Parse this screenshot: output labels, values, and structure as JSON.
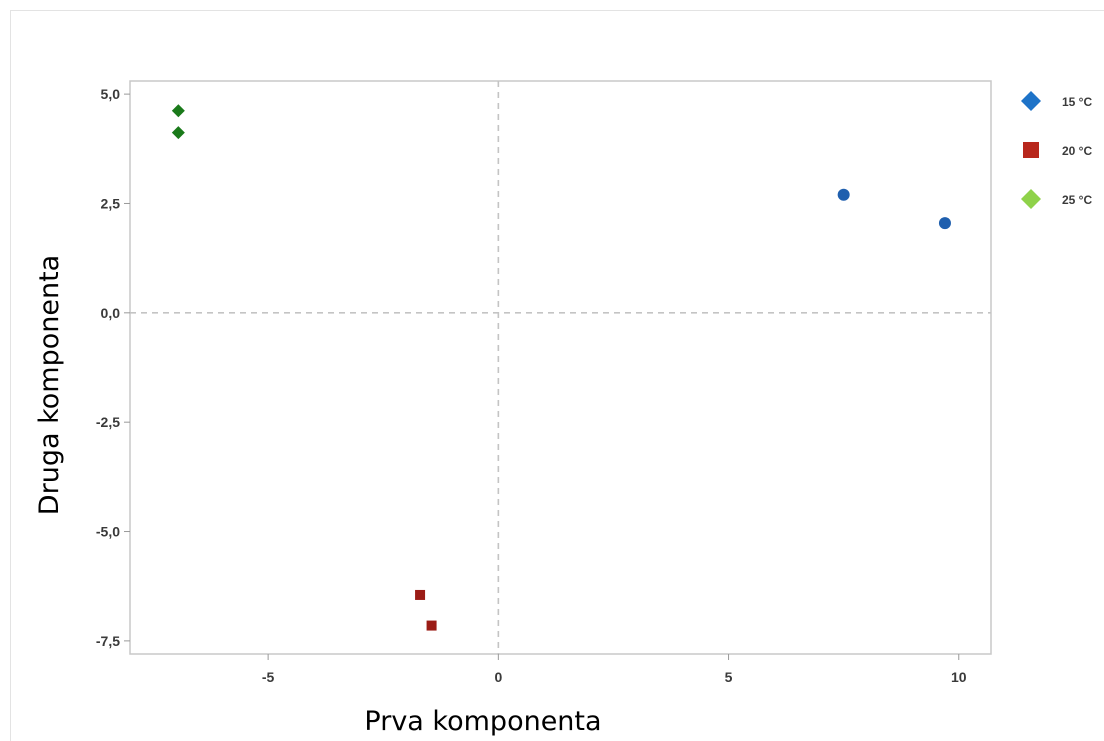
{
  "chart_data": {
    "type": "scatter",
    "title": "",
    "xlabel": "Prva komponenta",
    "ylabel": "Druga komponenta",
    "xlim": [
      -8.0,
      10.7
    ],
    "ylim": [
      -7.8,
      5.3
    ],
    "xticks": [
      -5,
      0,
      5,
      10
    ],
    "xtick_labels": [
      "-5",
      "0",
      "5",
      "10"
    ],
    "yticks": [
      5.0,
      2.5,
      0.0,
      -2.5,
      -5.0,
      -7.5
    ],
    "ytick_labels": [
      "5,0",
      "2,5",
      "0,0",
      "-2,5",
      "-5,0",
      "-7,5"
    ],
    "reference_lines": {
      "x": 0,
      "y": 0,
      "style": "dashed"
    },
    "grid": false,
    "legend_position": "right",
    "series": [
      {
        "name": "15 °C",
        "legend_label": "15 °C",
        "legend_marker": "diamond",
        "marker": "circle",
        "color": "#1f5fae",
        "legend_color": "#1e73c8",
        "points": [
          {
            "x": 7.5,
            "y": 2.7
          },
          {
            "x": 9.7,
            "y": 2.05
          }
        ]
      },
      {
        "name": "20 °C",
        "legend_label": "20 °C",
        "legend_marker": "square",
        "marker": "square",
        "color": "#9b1c16",
        "legend_color": "#b8271c",
        "points": [
          {
            "x": -1.7,
            "y": -6.45
          },
          {
            "x": -1.45,
            "y": -7.15
          }
        ]
      },
      {
        "name": "25 °C",
        "legend_label": "25 °C",
        "legend_marker": "diamond",
        "marker": "diamond",
        "color": "#1a7a1a",
        "legend_color": "#8fd24a",
        "points": [
          {
            "x": -6.95,
            "y": 4.62
          },
          {
            "x": -6.95,
            "y": 4.12
          }
        ]
      }
    ]
  }
}
